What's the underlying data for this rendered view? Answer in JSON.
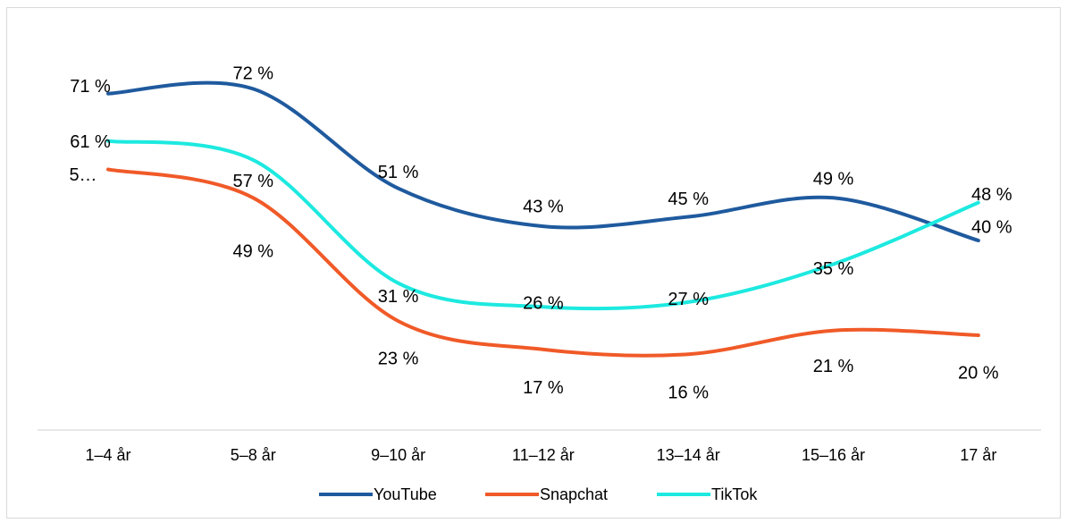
{
  "chart_data": {
    "type": "line",
    "categories": [
      "1–4 år",
      "5–8 år",
      "9–10 år",
      "11–12 år",
      "13–14 år",
      "15–16 år",
      "17 år"
    ],
    "ylim": [
      0,
      80
    ],
    "grid": false,
    "legend_position": "bottom",
    "series": [
      {
        "name": "YouTube",
        "color": "#1f5a9e",
        "values": [
          71,
          72,
          51,
          43,
          45,
          49,
          40
        ],
        "labels": [
          "71 %",
          "72 %",
          "51 %",
          "43 %",
          "45 %",
          "49 %",
          "40 %"
        ]
      },
      {
        "name": "Snapchat",
        "color": "#f05a28",
        "values": [
          55,
          49,
          23,
          17,
          16,
          21,
          20
        ],
        "labels": [
          "5…",
          "49 %",
          "23 %",
          "17 %",
          "16 %",
          "21 %",
          "20 %"
        ]
      },
      {
        "name": "TikTok",
        "color": "#1de9e0",
        "values": [
          61,
          57,
          31,
          26,
          27,
          35,
          48
        ],
        "labels": [
          "61 %",
          "57 %",
          "31 %",
          "26 %",
          "27 %",
          "35 %",
          "48 %"
        ]
      }
    ]
  }
}
